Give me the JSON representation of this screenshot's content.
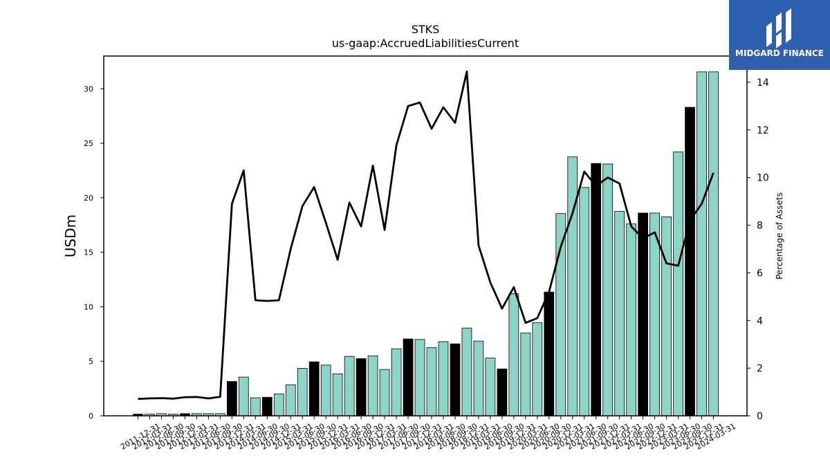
{
  "chart_data": {
    "type": "bar",
    "title": "STKS",
    "subtitle": "us-gaap:AccruedLiabilitiesCurrent",
    "ylabel": "USDm",
    "y2label": "Percentage of Assets",
    "ylim": [
      0,
      33
    ],
    "y2lim": [
      0,
      15.1
    ],
    "yticks": [
      0,
      5,
      10,
      15,
      20,
      25,
      30
    ],
    "y2ticks": [
      0,
      2,
      4,
      6,
      8,
      10,
      12,
      14
    ],
    "categories": [
      "2011-12-31",
      "2012-03-31",
      "2012-06-30",
      "2012-09-30",
      "2012-12-31",
      "2013-03-31",
      "2013-06-30",
      "2013-09-30",
      "2013-12-31",
      "2014-03-31",
      "2014-06-30",
      "2014-09-30",
      "2014-12-31",
      "2015-03-31",
      "2015-06-30",
      "2015-09-30",
      "2015-12-31",
      "2016-03-31",
      "2016-06-30",
      "2016-09-30",
      "2016-12-31",
      "2017-03-31",
      "2017-06-30",
      "2017-09-30",
      "2017-12-31",
      "2018-03-31",
      "2018-06-30",
      "2018-09-30",
      "2018-12-31",
      "2019-03-31",
      "2019-06-30",
      "2019-09-30",
      "2019-12-31",
      "2020-03-31",
      "2020-06-30",
      "2020-09-30",
      "2020-12-31",
      "2021-03-31",
      "2021-06-30",
      "2021-09-30",
      "2021-12-31",
      "2022-03-31",
      "2022-06-30",
      "2022-09-30",
      "2022-12-31",
      "2023-03-31",
      "2023-06-30",
      "2023-09-30",
      "2023-12-31",
      "2024-03-31"
    ],
    "series": [
      {
        "kind": "bar",
        "values": [
          0.15,
          0.15,
          0.2,
          0.15,
          0.2,
          0.2,
          0.2,
          0.2,
          3.15,
          3.55,
          1.65,
          1.7,
          2.0,
          2.85,
          4.35,
          4.95,
          4.65,
          3.85,
          5.45,
          5.25,
          5.5,
          4.25,
          6.15,
          7.05,
          7.0,
          6.25,
          6.8,
          6.6,
          8.05,
          6.85,
          5.3,
          4.3,
          11.2,
          7.6,
          8.55,
          11.35,
          18.55,
          23.75,
          20.95,
          23.15,
          23.1,
          18.75,
          17.6,
          18.6,
          18.6,
          18.25,
          24.2,
          28.3,
          31.55,
          31.55
        ],
        "highlight": [
          true,
          false,
          false,
          false,
          true,
          false,
          false,
          false,
          true,
          false,
          false,
          true,
          false,
          false,
          false,
          true,
          false,
          false,
          false,
          true,
          false,
          false,
          false,
          true,
          false,
          false,
          false,
          true,
          false,
          false,
          false,
          true,
          false,
          false,
          false,
          true,
          false,
          false,
          false,
          true,
          false,
          false,
          false,
          true,
          false,
          false,
          false,
          true,
          false,
          false
        ]
      },
      {
        "kind": "line",
        "axis": "right",
        "values": [
          0.71,
          0.73,
          0.74,
          0.72,
          0.78,
          0.79,
          0.73,
          0.8,
          8.9,
          10.3,
          4.85,
          4.82,
          4.85,
          7.0,
          8.8,
          9.6,
          8.1,
          6.55,
          8.95,
          7.95,
          10.5,
          7.8,
          11.35,
          13.0,
          13.15,
          12.05,
          12.95,
          12.3,
          14.45,
          7.15,
          5.6,
          4.5,
          5.4,
          3.9,
          4.1,
          5.2,
          7.1,
          8.5,
          10.25,
          9.65,
          10.0,
          9.75,
          7.95,
          7.45,
          7.7,
          6.4,
          6.3,
          8.2,
          8.9,
          10.2
        ]
      }
    ],
    "colors": {
      "bar": "#8dd3c7",
      "bar_highlight": "#000000",
      "line": "#000000",
      "bar_edge": "#000000",
      "logo_bg": "#2f5faf"
    }
  },
  "brand": {
    "name": "MIDGARD FINANCE",
    "icon": "midgard-logo-icon"
  }
}
